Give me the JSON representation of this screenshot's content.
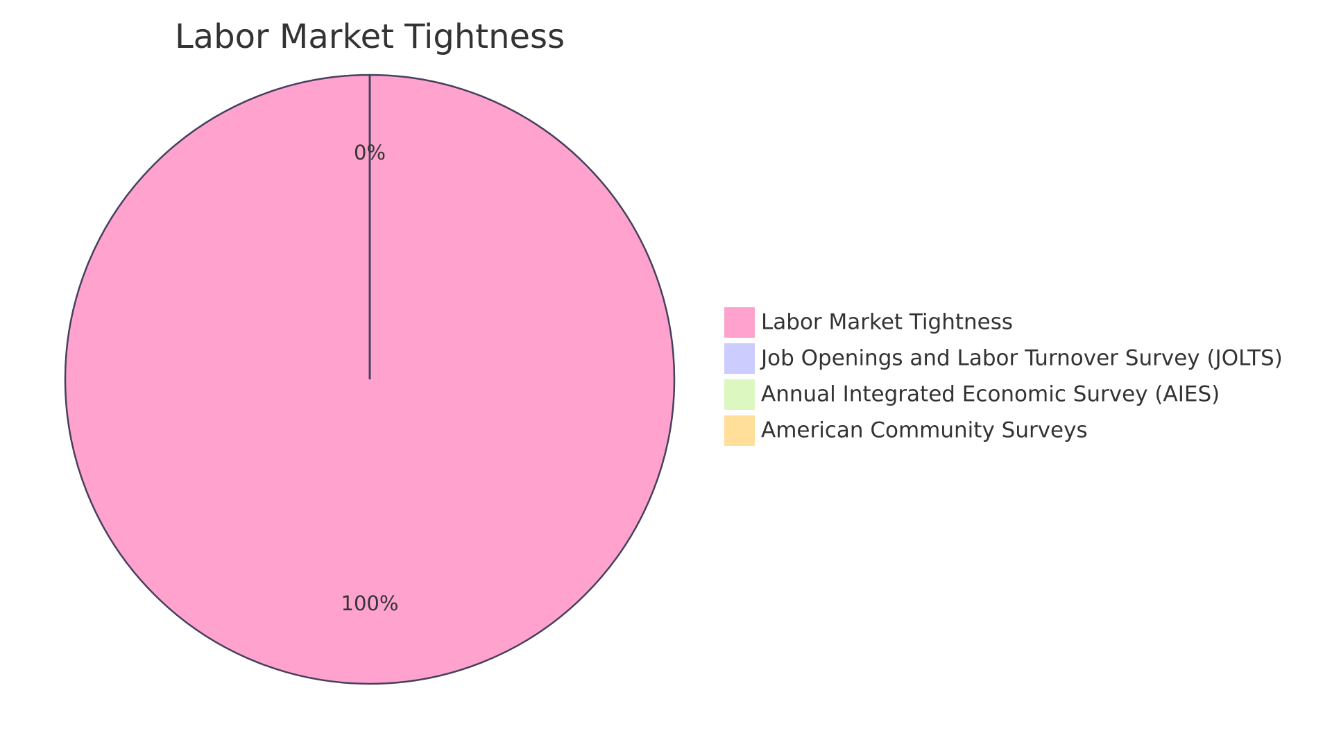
{
  "chart_data": {
    "type": "pie",
    "title": "Labor Market Tightness",
    "categories": [
      "Labor Market Tightness",
      "Job Openings and Labor Turnover Survey (JOLTS)",
      "Annual Integrated Economic Survey (AIES)",
      "American Community Surveys"
    ],
    "values": [
      100,
      0,
      0,
      0
    ],
    "value_labels": [
      "100%",
      "0%",
      null,
      null
    ],
    "colors": [
      "#ffa3ce",
      "#ccccff",
      "#dcf8c0",
      "#ffdf99"
    ]
  }
}
